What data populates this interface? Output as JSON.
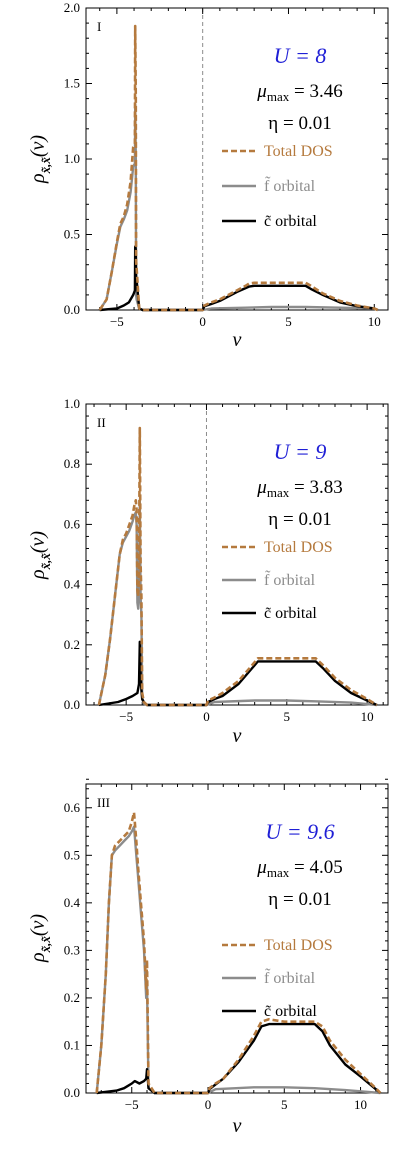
{
  "chart_data": [
    {
      "type": "line",
      "panel_label": "I",
      "xlabel": "ν",
      "ylabel": "ρ",
      "ylabel_sub": "x̃,x̃",
      "ylabel_tail": "(ν)",
      "xlim": [
        -6.8,
        10.8
      ],
      "ylim": [
        0,
        2.0
      ],
      "xticks": [
        -5,
        0,
        5,
        10
      ],
      "yticks": [
        0.0,
        0.5,
        1.0,
        1.5,
        2.0
      ],
      "ytick_labels": [
        "0.0",
        "0.5",
        "1.0",
        "1.5",
        "2.0"
      ],
      "zero_line_x": 0,
      "annotations": {
        "U": "U = 8",
        "mu": "μ",
        "mu_sub": "max",
        "mu_val": " = 3.46",
        "eta": "η = 0.01"
      },
      "legend": [
        "Total DOS",
        "f̃ orbital",
        "c̃ orbital"
      ],
      "series": [
        {
          "name": "Total DOS",
          "color": "#b57a3e",
          "dashed": true,
          "x": [
            -6,
            -5.6,
            -5.3,
            -5.0,
            -4.8,
            -4.6,
            -4.4,
            -4.2,
            -4.05,
            -3.95,
            -3.93,
            -3.9,
            -3.88,
            -3.85,
            -3.7,
            -3.5,
            -1.5,
            0,
            0.1,
            0.5,
            1,
            1.5,
            2,
            2.5,
            2.7,
            3,
            4,
            5,
            6,
            6.3,
            7,
            8,
            9,
            10,
            10.2
          ],
          "y": [
            0,
            0.07,
            0.25,
            0.45,
            0.57,
            0.62,
            0.7,
            0.85,
            1.08,
            1.1,
            1.88,
            1.4,
            0.33,
            0.28,
            0.01,
            0,
            0,
            0,
            0.03,
            0.05,
            0.07,
            0.1,
            0.13,
            0.16,
            0.175,
            0.18,
            0.18,
            0.18,
            0.18,
            0.16,
            0.11,
            0.06,
            0.03,
            0.01,
            0
          ]
        },
        {
          "name": "f̃ orbital",
          "color": "#8c8c8c",
          "dashed": false,
          "x": [
            -6,
            -5.6,
            -5.3,
            -5.0,
            -4.8,
            -4.6,
            -4.4,
            -4.2,
            -4.05,
            -3.95,
            -3.93,
            -3.9,
            -3.88,
            -3.85,
            -3.7,
            -3.5,
            -1.5,
            0,
            0.5,
            2.5,
            4,
            6,
            8,
            10,
            10.2
          ],
          "y": [
            0,
            0.07,
            0.25,
            0.44,
            0.55,
            0.6,
            0.66,
            0.78,
            0.95,
            0.97,
            1.36,
            1.0,
            0.1,
            0.07,
            0.01,
            0,
            0,
            0,
            0.01,
            0.015,
            0.02,
            0.02,
            0.015,
            0.01,
            0
          ]
        },
        {
          "name": "c̃ orbital",
          "color": "#000000",
          "dashed": false,
          "x": [
            -6,
            -5.0,
            -4.6,
            -4.3,
            -4.05,
            -3.95,
            -3.93,
            -3.9,
            -3.88,
            -3.85,
            -3.7,
            -3.5,
            -1.5,
            0,
            0.1,
            0.5,
            1,
            1.5,
            2,
            2.5,
            2.7,
            3,
            4,
            5,
            6,
            6.3,
            7,
            8,
            9,
            10,
            10.2
          ],
          "y": [
            0,
            0.01,
            0.03,
            0.05,
            0.1,
            0.13,
            0.42,
            0.4,
            0.22,
            0.2,
            0.01,
            0,
            0,
            0,
            0.025,
            0.04,
            0.06,
            0.09,
            0.12,
            0.145,
            0.155,
            0.16,
            0.16,
            0.16,
            0.16,
            0.14,
            0.1,
            0.05,
            0.025,
            0.01,
            0
          ]
        }
      ]
    },
    {
      "type": "line",
      "panel_label": "II",
      "xlabel": "ν",
      "ylabel": "ρ",
      "ylabel_sub": "x̃,x̃",
      "ylabel_tail": "(ν)",
      "xlim": [
        -7.5,
        11.3
      ],
      "ylim": [
        0,
        1.0
      ],
      "xticks": [
        -5,
        0,
        5,
        10
      ],
      "yticks": [
        0.0,
        0.2,
        0.4,
        0.6,
        0.8,
        1.0
      ],
      "ytick_labels": [
        "0.0",
        "0.2",
        "0.4",
        "0.6",
        "0.8",
        "1.0"
      ],
      "zero_line_x": 0,
      "annotations": {
        "U": "U = 9",
        "mu": "μ",
        "mu_sub": "max",
        "mu_val": " = 3.83",
        "eta": "η = 0.01"
      },
      "legend": [
        "Total DOS",
        "f̃ orbital",
        "c̃ orbital"
      ],
      "series": [
        {
          "name": "Total DOS",
          "color": "#b57a3e",
          "dashed": true,
          "x": [
            -6.7,
            -6.3,
            -6.0,
            -5.7,
            -5.4,
            -5.2,
            -5.0,
            -4.8,
            -4.6,
            -4.5,
            -4.4,
            -4.35,
            -4.3,
            -4.25,
            -4.2,
            -4.15,
            -4.1,
            -4.05,
            -4.0,
            -3.9,
            -3.7,
            -2.5,
            0,
            0.1,
            0.5,
            1,
            2,
            2.8,
            3.2,
            4,
            5,
            6,
            6.8,
            7.3,
            8,
            9,
            10,
            10.6
          ],
          "y": [
            0,
            0.1,
            0.22,
            0.36,
            0.5,
            0.55,
            0.57,
            0.6,
            0.63,
            0.66,
            0.68,
            0.65,
            0.38,
            0.36,
            0.45,
            0.92,
            0.47,
            0.36,
            0.04,
            0.01,
            0,
            0,
            0,
            0.015,
            0.025,
            0.04,
            0.08,
            0.13,
            0.155,
            0.155,
            0.155,
            0.155,
            0.155,
            0.13,
            0.09,
            0.05,
            0.02,
            0
          ]
        },
        {
          "name": "f̃ orbital",
          "color": "#8c8c8c",
          "dashed": false,
          "x": [
            -6.7,
            -6.3,
            -6.0,
            -5.7,
            -5.4,
            -5.2,
            -5.0,
            -4.8,
            -4.6,
            -4.5,
            -4.4,
            -4.35,
            -4.3,
            -4.25,
            -4.2,
            -4.15,
            -4.1,
            -4.05,
            -4.0,
            -3.9,
            -3.7,
            -2.5,
            0,
            0.5,
            3,
            5,
            7,
            9,
            10.6
          ],
          "y": [
            0,
            0.1,
            0.22,
            0.36,
            0.5,
            0.54,
            0.56,
            0.58,
            0.61,
            0.63,
            0.64,
            0.6,
            0.34,
            0.32,
            0.38,
            0.68,
            0.36,
            0.3,
            0.02,
            0.005,
            0,
            0,
            0,
            0.01,
            0.015,
            0.015,
            0.012,
            0.008,
            0
          ]
        },
        {
          "name": "c̃ orbital",
          "color": "#000000",
          "dashed": false,
          "x": [
            -6.7,
            -5.5,
            -5.0,
            -4.6,
            -4.3,
            -4.2,
            -4.15,
            -4.1,
            -4.05,
            -4.0,
            -3.9,
            -3.7,
            -2.5,
            0,
            0.1,
            0.5,
            1,
            2,
            2.8,
            3.2,
            4,
            5,
            6,
            6.8,
            7.3,
            8,
            9,
            10,
            10.6
          ],
          "y": [
            0,
            0.01,
            0.02,
            0.03,
            0.04,
            0.07,
            0.21,
            0.1,
            0.05,
            0.02,
            0.01,
            0,
            0,
            0,
            0.01,
            0.02,
            0.03,
            0.07,
            0.12,
            0.145,
            0.145,
            0.145,
            0.145,
            0.145,
            0.12,
            0.08,
            0.04,
            0.015,
            0
          ]
        }
      ]
    },
    {
      "type": "line",
      "panel_label": "III",
      "xlabel": "ν",
      "ylabel": "ρ",
      "ylabel_sub": "x̃,x̃",
      "ylabel_tail": "(ν)",
      "xlim": [
        -8,
        11.8
      ],
      "ylim": [
        0,
        0.65
      ],
      "xticks": [
        -5,
        0,
        5,
        10
      ],
      "yticks": [
        0.0,
        0.1,
        0.2,
        0.3,
        0.4,
        0.5,
        0.6
      ],
      "ytick_labels": [
        "0.0",
        "0.1",
        "0.2",
        "0.3",
        "0.4",
        "0.5",
        "0.6"
      ],
      "zero_line_x": null,
      "annotations": {
        "U": "U = 9.6",
        "mu": "μ",
        "mu_sub": "max",
        "mu_val": " = 4.05",
        "eta": "η = 0.01"
      },
      "legend": [
        "Total DOS",
        "f̃ orbital",
        "c̃ orbital"
      ],
      "series": [
        {
          "name": "Total DOS",
          "color": "#b57a3e",
          "dashed": true,
          "x": [
            -7.3,
            -7.0,
            -6.7,
            -6.5,
            -6.3,
            -6.1,
            -5.8,
            -5.5,
            -5.2,
            -5.0,
            -4.85,
            -4.8,
            -4.7,
            -4.6,
            -4.4,
            -4.2,
            -4.05,
            -4.0,
            -3.9,
            -3.5,
            -1,
            0,
            0.1,
            0.5,
            1,
            2,
            3,
            3.5,
            4,
            5,
            6,
            7,
            7.5,
            8,
            9,
            10,
            11,
            11.3
          ],
          "y": [
            0,
            0.1,
            0.25,
            0.4,
            0.5,
            0.52,
            0.53,
            0.54,
            0.55,
            0.57,
            0.59,
            0.57,
            0.53,
            0.48,
            0.4,
            0.32,
            0.22,
            0.28,
            0.02,
            0,
            0,
            0,
            0.01,
            0.02,
            0.03,
            0.07,
            0.12,
            0.15,
            0.155,
            0.15,
            0.15,
            0.15,
            0.14,
            0.11,
            0.07,
            0.04,
            0.01,
            0
          ]
        },
        {
          "name": "f̃ orbital",
          "color": "#8c8c8c",
          "dashed": false,
          "x": [
            -7.3,
            -7.0,
            -6.7,
            -6.5,
            -6.3,
            -6.1,
            -5.8,
            -5.5,
            -5.2,
            -5.0,
            -4.85,
            -4.8,
            -4.7,
            -4.6,
            -4.4,
            -4.2,
            -4.05,
            -4.0,
            -3.9,
            -3.5,
            -1,
            0,
            0.5,
            3,
            5,
            7,
            9,
            11.3
          ],
          "y": [
            0,
            0.1,
            0.25,
            0.4,
            0.5,
            0.51,
            0.52,
            0.53,
            0.54,
            0.55,
            0.56,
            0.54,
            0.5,
            0.46,
            0.38,
            0.3,
            0.2,
            0.23,
            0.01,
            0,
            0,
            0,
            0.008,
            0.012,
            0.012,
            0.01,
            0.006,
            0
          ]
        },
        {
          "name": "c̃ orbital",
          "color": "#000000",
          "dashed": false,
          "x": [
            -7.3,
            -6,
            -5.5,
            -5.0,
            -4.8,
            -4.5,
            -4.2,
            -4.05,
            -4.0,
            -3.95,
            -3.9,
            -3.5,
            -1,
            0,
            0.1,
            0.5,
            1,
            2,
            3,
            3.5,
            4,
            5,
            6,
            7,
            7.5,
            8,
            9,
            10,
            11,
            11.3
          ],
          "y": [
            0,
            0.005,
            0.01,
            0.02,
            0.025,
            0.02,
            0.025,
            0.03,
            0.05,
            0.03,
            0.01,
            0,
            0,
            0,
            0.008,
            0.018,
            0.03,
            0.065,
            0.11,
            0.14,
            0.145,
            0.145,
            0.145,
            0.145,
            0.13,
            0.1,
            0.06,
            0.035,
            0.008,
            0
          ]
        }
      ]
    }
  ]
}
